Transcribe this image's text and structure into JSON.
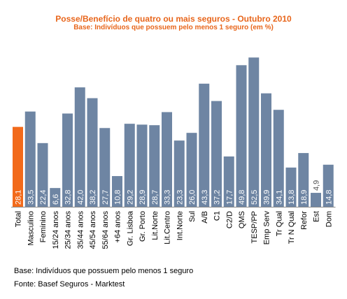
{
  "chart_data": {
    "type": "bar",
    "title": "Posse/Benefício de quatro ou mais seguros - Outubro 2010",
    "subtitle": "Base: Indivíduos que possuem pelo menos 1 seguro (em %)",
    "xlabel": "",
    "ylabel": "",
    "ylim": [
      0,
      56
    ],
    "grid": false,
    "legend": "none",
    "colors": {
      "bar": "#6e85a3",
      "highlight": "#f26a1b",
      "value_text": "#ffffff",
      "value_text_small": "#555555"
    },
    "categories": [
      "Total",
      "Masculino",
      "Feminino",
      "15/24 anos",
      "25/34 anos",
      "35/44 anos",
      "45/54 anos",
      "55/64 anos",
      "+64 anos",
      "Gr. Lisboa",
      "Gr. Porto",
      "Lit.Norte",
      "Lit.Centro",
      "Int.Norte",
      "Sul",
      "A/B",
      "C1",
      "C2/D",
      "QMS",
      "TESP/PP",
      "Emp Serv",
      "Tr Qual",
      "Tr N Qual",
      "Refor",
      "Est",
      "Dom"
    ],
    "values": [
      28.1,
      33.5,
      22.4,
      6.6,
      32.8,
      42.0,
      38.2,
      27.7,
      10.8,
      29.2,
      28.9,
      28.7,
      33.3,
      23.3,
      26.0,
      43.3,
      37.2,
      17.7,
      49.8,
      52.5,
      39.9,
      34.1,
      13.8,
      18.9,
      4.9,
      14.8
    ],
    "value_labels": [
      "28,1",
      "33,5",
      "22,4",
      "6,6",
      "32,8",
      "42,0",
      "38,2",
      "27,7",
      "10,8",
      "29,2",
      "28,9",
      "28,7",
      "33,3",
      "23,3",
      "26,0",
      "43,3",
      "37,2",
      "17,7",
      "49,8",
      "52,5",
      "39,9",
      "34,1",
      "13,8",
      "18,9",
      "4,9",
      "14,8"
    ],
    "highlight_index": 0
  },
  "footnotes": {
    "base": "Base: Indivíduos que possuem pelo menos 1 seguro",
    "source": "Fonte: Basef Seguros - Marktest"
  }
}
